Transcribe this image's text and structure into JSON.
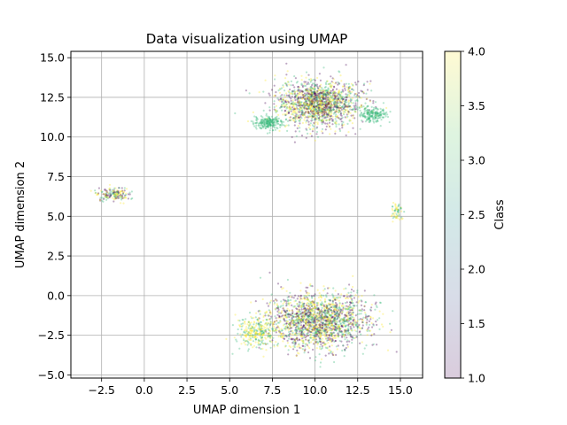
{
  "chart_data": {
    "type": "scatter",
    "title": "Data visualization using UMAP",
    "xlabel": "UMAP dimension 1",
    "ylabel": "UMAP dimension 2",
    "xlim": [
      -4.3,
      16.3
    ],
    "ylim": [
      -5.2,
      15.4
    ],
    "xticks": [
      -2.5,
      0.0,
      2.5,
      5.0,
      7.5,
      10.0,
      12.5,
      15.0
    ],
    "xtick_labels": [
      "−2.5",
      "0.0",
      "2.5",
      "5.0",
      "7.5",
      "10.0",
      "12.5",
      "15.0"
    ],
    "yticks": [
      -5.0,
      -2.5,
      0.0,
      2.5,
      5.0,
      7.5,
      10.0,
      12.5,
      15.0
    ],
    "ytick_labels": [
      "−5.0",
      "−2.5",
      "0.0",
      "2.5",
      "5.0",
      "7.5",
      "10.0",
      "12.5",
      "15.0"
    ],
    "grid": true,
    "colormap": "viridis",
    "point_alpha": 0.2,
    "colorbar": {
      "label": "Class",
      "range": [
        1.0,
        4.0
      ],
      "ticks": [
        1.0,
        1.5,
        2.0,
        2.5,
        3.0,
        3.5,
        4.0
      ],
      "tick_labels": [
        "1.0",
        "1.5",
        "2.0",
        "2.5",
        "3.0",
        "3.5",
        "4.0"
      ]
    },
    "clusters": [
      {
        "center_x": 10.2,
        "center_y": 12.1,
        "spread_x": 2.7,
        "spread_y": 1.6,
        "points": 1600,
        "dominant_classes": [
          4,
          1,
          3
        ]
      },
      {
        "center_x": 7.3,
        "center_y": 10.9,
        "spread_x": 0.9,
        "spread_y": 0.5,
        "points": 220,
        "dominant_classes": [
          3
        ]
      },
      {
        "center_x": 13.4,
        "center_y": 11.4,
        "spread_x": 0.9,
        "spread_y": 0.5,
        "points": 180,
        "dominant_classes": [
          3
        ]
      },
      {
        "center_x": -1.8,
        "center_y": 6.4,
        "spread_x": 1.0,
        "spread_y": 0.5,
        "points": 180,
        "dominant_classes": [
          3,
          1,
          4
        ]
      },
      {
        "center_x": 14.8,
        "center_y": 5.3,
        "spread_x": 0.4,
        "spread_y": 0.6,
        "points": 60,
        "dominant_classes": [
          4,
          3
        ]
      },
      {
        "center_x": 10.2,
        "center_y": -1.6,
        "spread_x": 3.2,
        "spread_y": 1.9,
        "points": 1900,
        "dominant_classes": [
          3,
          1,
          4
        ]
      },
      {
        "center_x": 6.6,
        "center_y": -2.3,
        "spread_x": 1.4,
        "spread_y": 1.1,
        "points": 300,
        "dominant_classes": [
          4,
          3
        ]
      }
    ]
  }
}
